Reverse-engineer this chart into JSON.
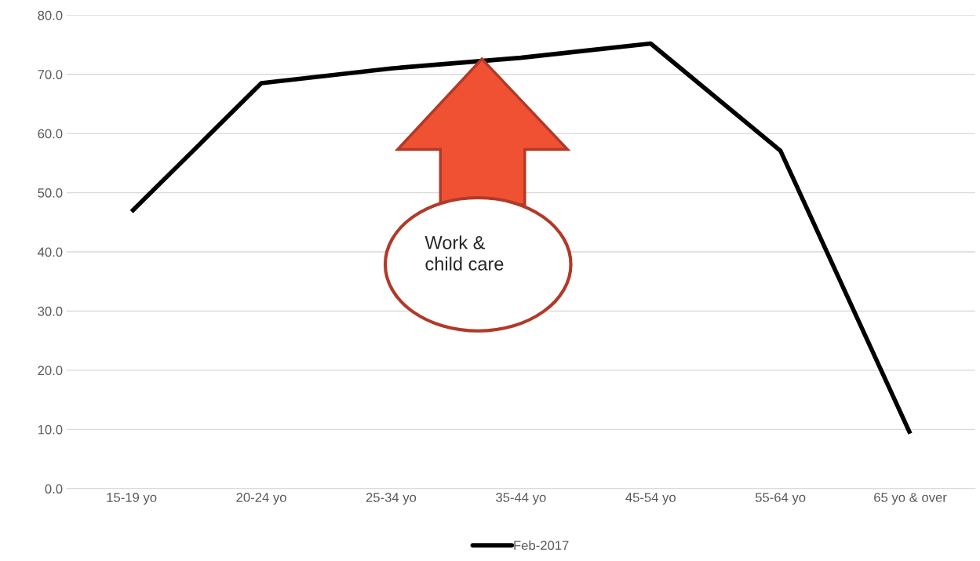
{
  "chart_data": {
    "type": "line",
    "categories": [
      "15-19 yo",
      "20-24 yo",
      "25-34 yo",
      "35-44 yo",
      "45-54 yo",
      "55-64 yo",
      "65 yo & over"
    ],
    "series": [
      {
        "name": "Feb-2017",
        "color": "#000000",
        "values": [
          46.8,
          68.5,
          71.0,
          72.8,
          75.2,
          57.1,
          9.3
        ]
      }
    ],
    "ylim": [
      0,
      80
    ],
    "yticks": [
      {
        "value": 0,
        "label": "0.0"
      },
      {
        "value": 10,
        "label": "10.0"
      },
      {
        "value": 20,
        "label": "20.0"
      },
      {
        "value": 30,
        "label": "30.0"
      },
      {
        "value": 40,
        "label": "40.0"
      },
      {
        "value": 50,
        "label": "50.0"
      },
      {
        "value": 60,
        "label": "60.0"
      },
      {
        "value": 70,
        "label": "70.0"
      },
      {
        "value": 80,
        "label": "80.0"
      }
    ],
    "grid": "y",
    "legend": "bottom",
    "marker": "none",
    "line_style": "solid",
    "annotations": [
      "Work &\nchild care"
    ]
  }
}
